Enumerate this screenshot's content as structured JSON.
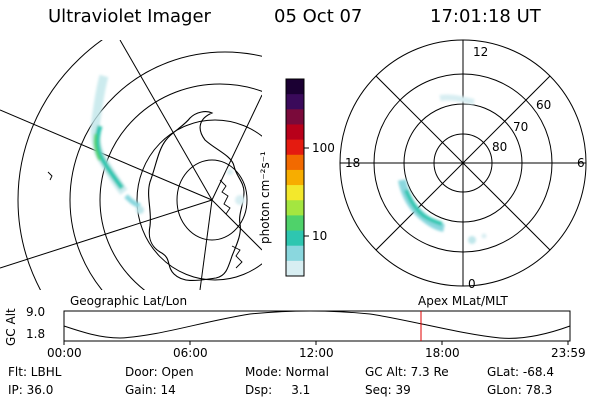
{
  "header": {
    "title": "Ultraviolet Imager",
    "date": "05 Oct 07",
    "time": "17:01:18 UT"
  },
  "geo_panel": {
    "label": "Geographic Lat/Lon"
  },
  "polar_panel": {
    "label": "Apex MLat/MLT",
    "lat_labels": [
      "80",
      "70",
      "60"
    ],
    "mlt_labels": {
      "top": "12",
      "bottom": "0",
      "left": "18",
      "right": "6"
    }
  },
  "colorbar": {
    "unit": "photon cm⁻²s⁻¹",
    "tick_labels": [
      "100",
      "10"
    ],
    "colors": [
      "#1b0033",
      "#3a0a5a",
      "#7a0a3a",
      "#b8001a",
      "#e41b10",
      "#f26a00",
      "#f7ad00",
      "#f3e82c",
      "#a4e640",
      "#4fd26a",
      "#2ec6b0",
      "#8ad7de",
      "#d8eef2"
    ]
  },
  "timeline": {
    "ylabel": "GC Alt",
    "yticks": [
      "9.0",
      "1.8"
    ],
    "xticks": [
      "00:00",
      "06:00",
      "12:00",
      "18:00",
      "23:59"
    ],
    "marker_color": "#e00000"
  },
  "info": {
    "col1": [
      "Flt: LBHL",
      "IP: 36.0"
    ],
    "col2": [
      "Door: Open",
      "Gain: 14"
    ],
    "col3": [
      "Mode: Normal",
      "Dsp:     3.1"
    ],
    "col4": [
      "GC Alt: 7.3 Re",
      "Seq: 39"
    ],
    "col5": [
      "GLat: -68.4",
      "GLon: 78.3"
    ]
  }
}
